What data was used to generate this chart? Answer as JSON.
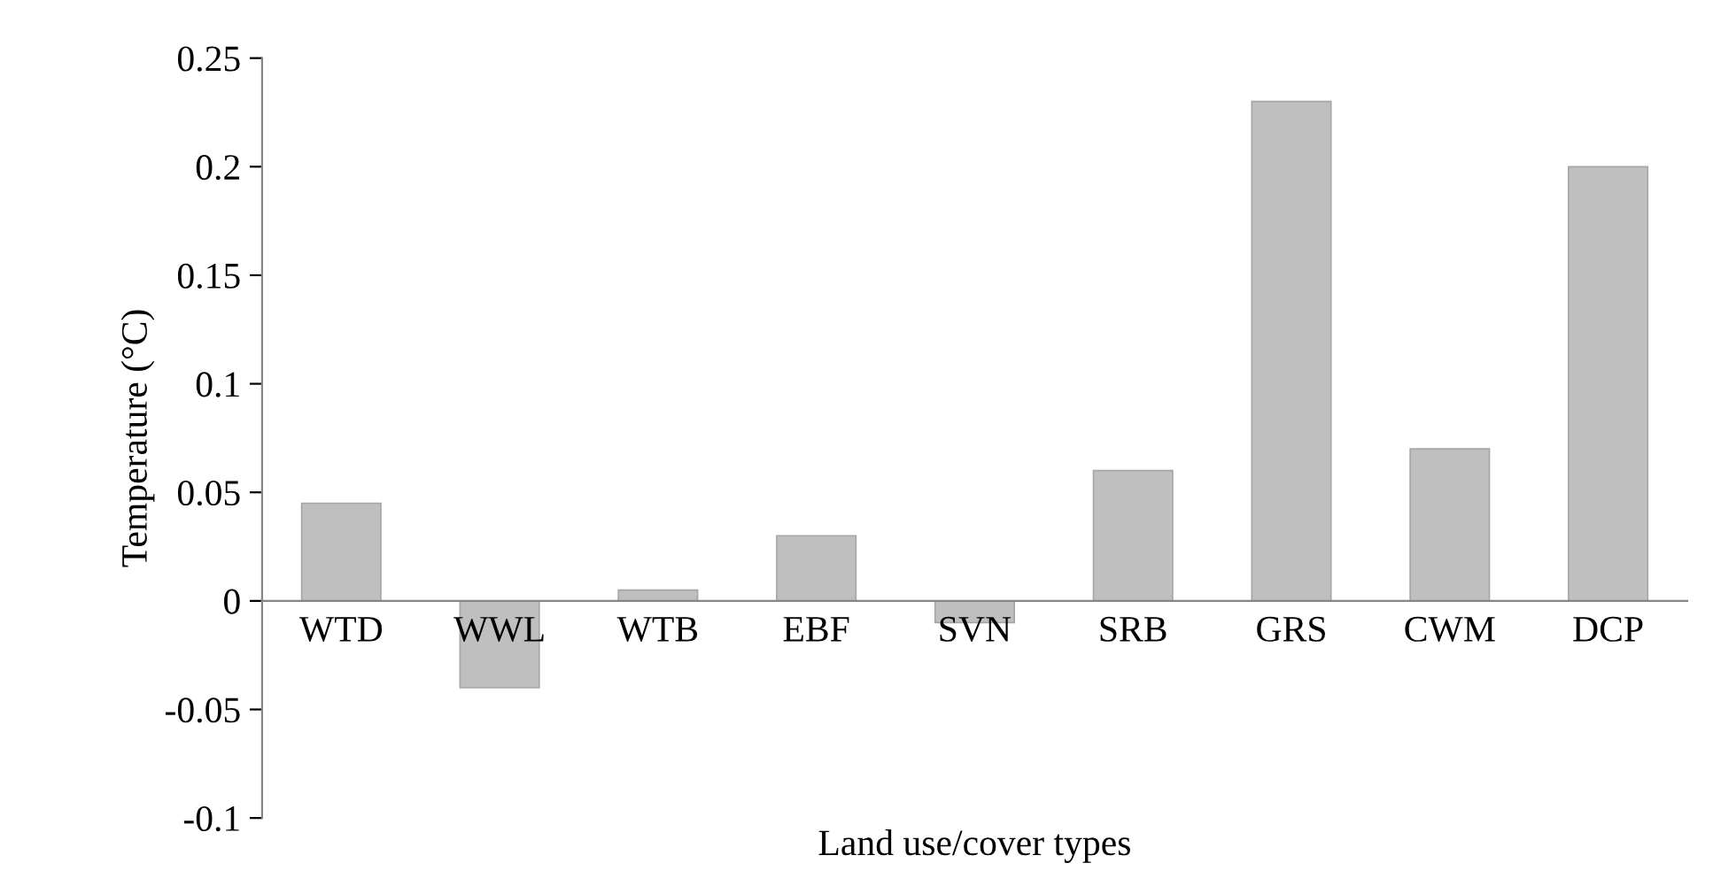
{
  "chart_data": {
    "type": "bar",
    "xlabel": "Land use/cover types",
    "ylabel": "Temperature (°C)",
    "categories": [
      "WTD",
      "WWL",
      "WTB",
      "EBF",
      "SVN",
      "SRB",
      "GRS",
      "CWM",
      "DCP"
    ],
    "values": [
      0.045,
      -0.04,
      0.005,
      0.03,
      -0.01,
      0.06,
      0.23,
      0.07,
      0.2
    ],
    "color": "#bfbfbf",
    "ylim": [
      -0.1,
      0.25
    ],
    "yticks": [
      -0.1,
      -0.05,
      0,
      0.05,
      0.1,
      0.15,
      0.2,
      0.25
    ],
    "grid": false,
    "legend": false
  }
}
